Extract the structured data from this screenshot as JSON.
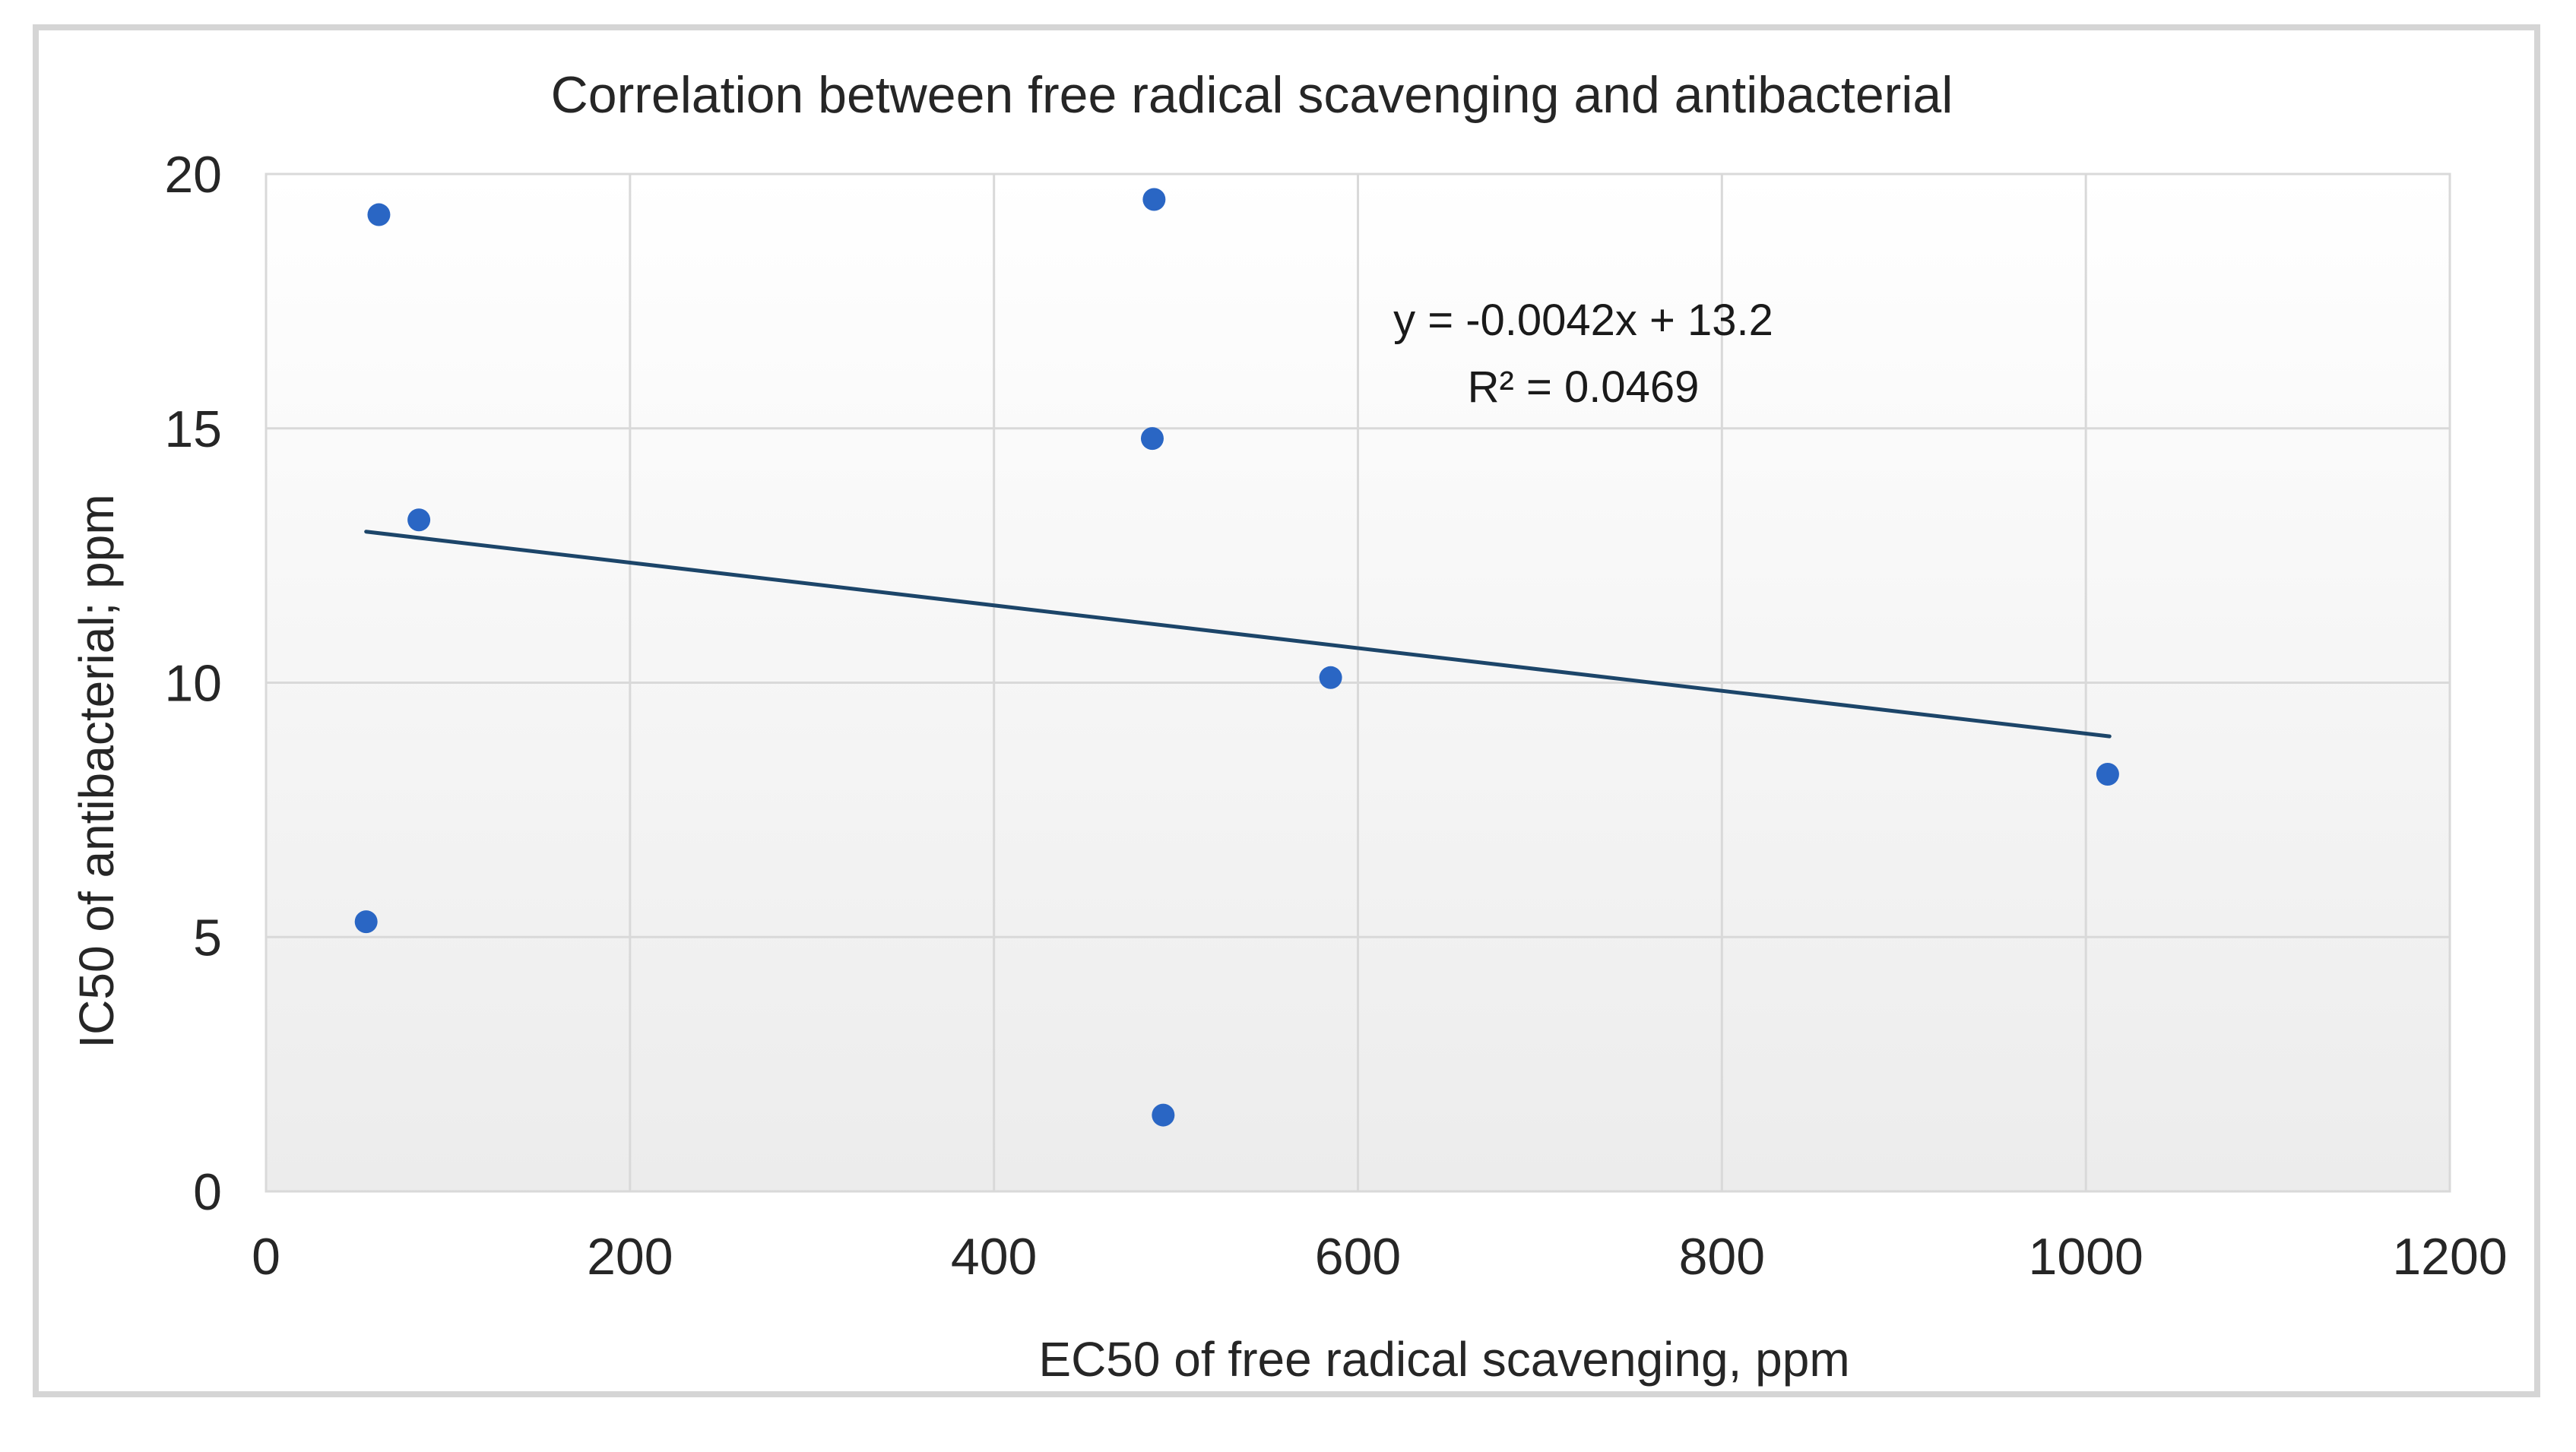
{
  "chart_data": {
    "type": "scatter",
    "title": "Correlation between free radical scavenging and antibacterial",
    "xlabel": "EC50 of free radical scavenging, ppm",
    "ylabel": "IC50 of antibacterial; ppm",
    "xlim": [
      0,
      1200
    ],
    "ylim": [
      0,
      20
    ],
    "x_ticks": [
      0,
      200,
      400,
      600,
      800,
      1000,
      1200
    ],
    "y_ticks": [
      0,
      5,
      10,
      15,
      20
    ],
    "grid": true,
    "legend": "none",
    "points": [
      {
        "x": 62,
        "y": 19.2
      },
      {
        "x": 84,
        "y": 13.2
      },
      {
        "x": 55,
        "y": 5.3
      },
      {
        "x": 488,
        "y": 19.5
      },
      {
        "x": 487,
        "y": 14.8
      },
      {
        "x": 493,
        "y": 1.5
      },
      {
        "x": 585,
        "y": 10.1
      },
      {
        "x": 1012,
        "y": 8.2
      }
    ],
    "trendline": {
      "slope": -0.0042,
      "intercept": 13.2,
      "x_start": 55,
      "x_end": 1013,
      "equation_label": "y = -0.0042x + 13.2",
      "r_squared_label": "R² = 0.0469"
    },
    "colors": {
      "marker": "#2a66c4",
      "trendline": "#1c4569",
      "gridline": "#d9d9d9",
      "frame_border": "#d5d5d5",
      "text": "#262626",
      "plot_bg_top": "#ffffff",
      "plot_bg_bottom": "#ececec"
    }
  }
}
